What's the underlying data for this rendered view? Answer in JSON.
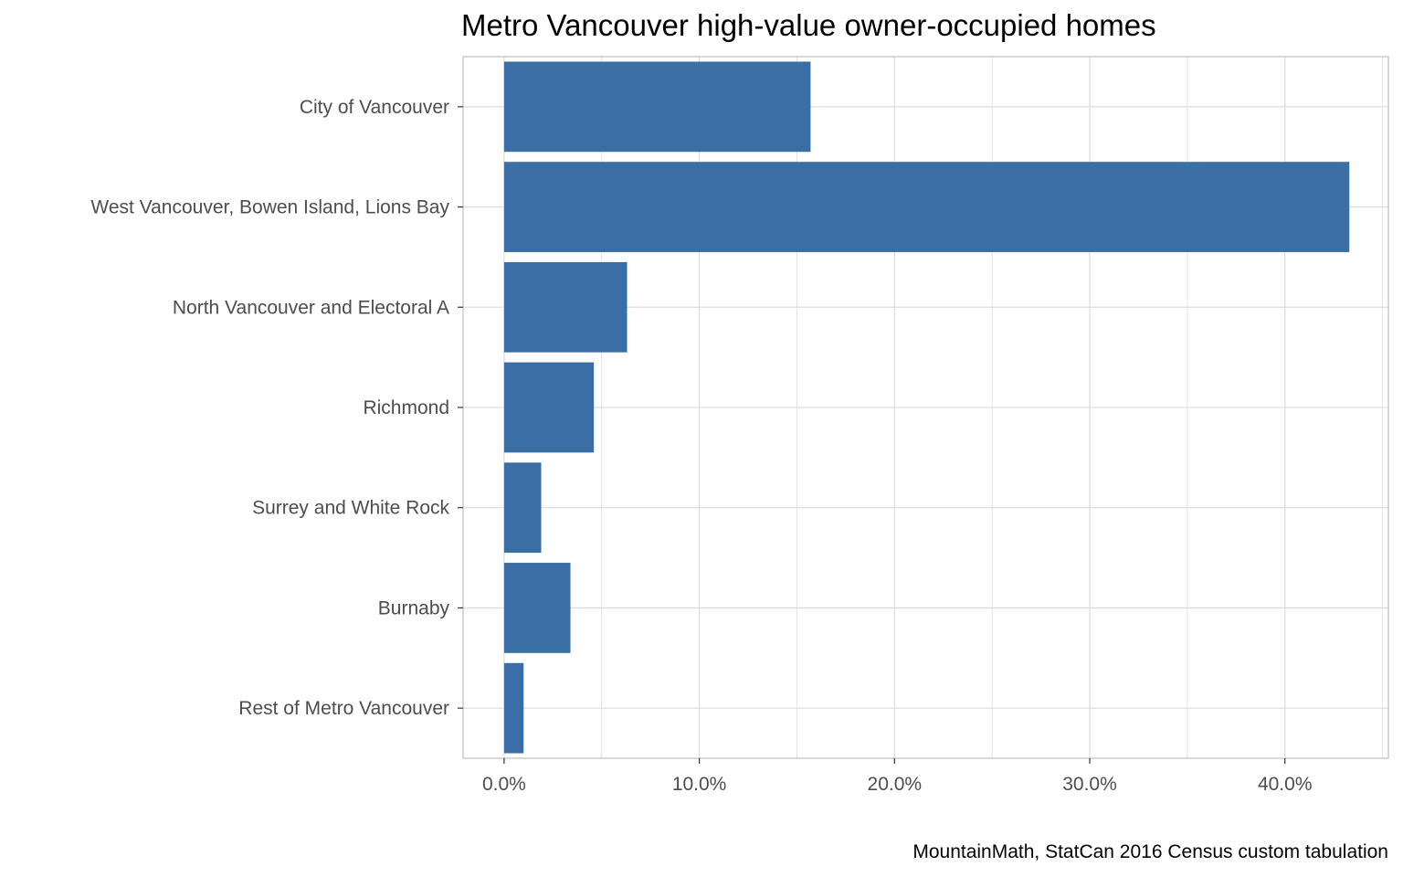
{
  "chart_data": {
    "type": "bar",
    "orientation": "horizontal",
    "title": "Metro Vancouver high-value owner-occupied homes",
    "caption": "MountainMath, StatCan 2016 Census custom tabulation",
    "xlabel": "",
    "ylabel": "",
    "categories": [
      "City of Vancouver",
      "West Vancouver, Bowen Island, Lions Bay",
      "North Vancouver and Electoral A",
      "Richmond",
      "Surrey and White Rock",
      "Burnaby",
      "Rest of Metro Vancouver"
    ],
    "values": [
      0.157,
      0.433,
      0.063,
      0.046,
      0.019,
      0.034,
      0.01
    ],
    "xlim": [
      -0.021,
      0.453
    ],
    "x_ticks": [
      0.0,
      0.1,
      0.2,
      0.3,
      0.4
    ],
    "x_tick_labels": [
      "0.0%",
      "10.0%",
      "20.0%",
      "30.0%",
      "40.0%"
    ],
    "grid": true,
    "bar_color": "#3a6ea5",
    "grid_color": "#dedede",
    "panel_border_color": "#b3b3b3"
  }
}
